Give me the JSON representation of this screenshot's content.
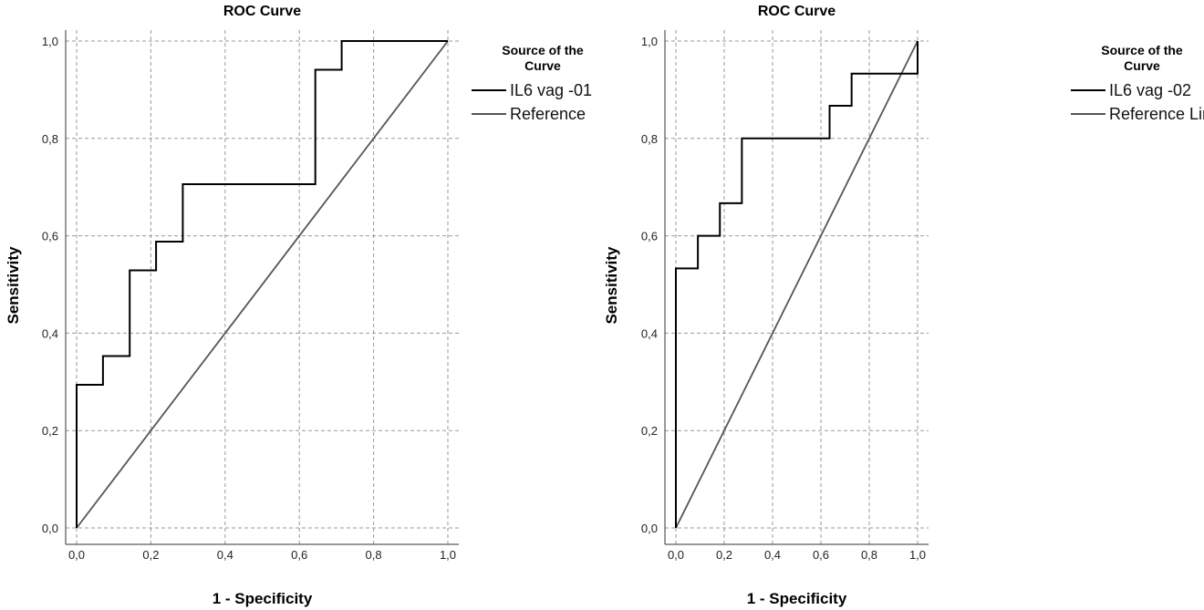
{
  "chart_data": [
    {
      "type": "line",
      "title": "ROC Curve",
      "xlabel": "1 - Specificity",
      "ylabel": "Sensitivity",
      "xlim": [
        0,
        1
      ],
      "ylim": [
        0,
        1
      ],
      "ticks": [
        "0,0",
        "0,2",
        "0,4",
        "0,6",
        "0,8",
        "1,0"
      ],
      "grid": true,
      "legend_title": "Source of the Curve",
      "legend_placement": "right",
      "series": [
        {
          "name": "IL6 vag -01",
          "color": "#000000",
          "x": [
            0,
            0,
            0.071,
            0.071,
            0.143,
            0.143,
            0.214,
            0.214,
            0.286,
            0.286,
            0.643,
            0.643,
            0.714,
            0.714,
            1
          ],
          "y": [
            0,
            0.294,
            0.294,
            0.353,
            0.353,
            0.529,
            0.529,
            0.588,
            0.588,
            0.706,
            0.706,
            0.941,
            0.941,
            1,
            1
          ]
        },
        {
          "name": "Reference",
          "color": "#555555",
          "x": [
            0,
            1
          ],
          "y": [
            0,
            1
          ]
        }
      ]
    },
    {
      "type": "line",
      "title": "ROC Curve",
      "xlabel": "1 - Specificity",
      "ylabel": "Sensitivity",
      "xlim": [
        0,
        1
      ],
      "ylim": [
        0,
        1
      ],
      "ticks": [
        "0,0",
        "0,2",
        "0,4",
        "0,6",
        "0,8",
        "1,0"
      ],
      "grid": true,
      "legend_title": "Source of the Curve",
      "legend_placement": "right",
      "series": [
        {
          "name": "IL6 vag -02",
          "color": "#000000",
          "x": [
            0,
            0,
            0.091,
            0.091,
            0.182,
            0.182,
            0.273,
            0.273,
            0.636,
            0.636,
            0.727,
            0.727,
            1,
            1
          ],
          "y": [
            0,
            0.533,
            0.533,
            0.6,
            0.6,
            0.667,
            0.667,
            0.8,
            0.8,
            0.867,
            0.867,
            0.933,
            0.933,
            1
          ]
        },
        {
          "name": "Reference Line",
          "color": "#555555",
          "x": [
            0,
            1
          ],
          "y": [
            0,
            1
          ]
        }
      ]
    }
  ]
}
